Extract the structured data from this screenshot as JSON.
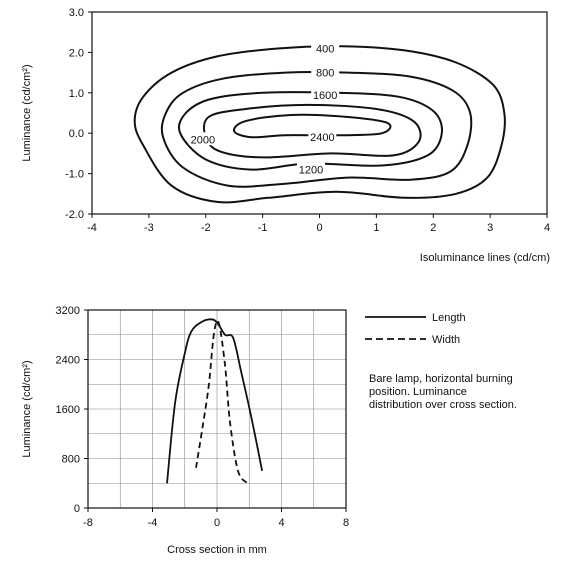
{
  "chart_data": [
    {
      "type": "contour",
      "xlabel": "Isoluminance lines (cd/cm)",
      "ylabel": "Luminance (cd/cm²)",
      "xlim": [
        -4,
        4
      ],
      "ylim": [
        -2,
        3
      ],
      "xticks": [
        "-4",
        "-3",
        "-2",
        "-1",
        "0",
        "1",
        "2",
        "3",
        "4"
      ],
      "yticks": [
        "3.0",
        "2.0",
        "1.0",
        "0.0",
        "-1.0",
        "-2.0"
      ],
      "grid": false,
      "contours": [
        {
          "label": "400",
          "points": [
            [
              -3.1,
              -0.3
            ],
            [
              -3.25,
              0.3
            ],
            [
              -3.1,
              0.9
            ],
            [
              -2.6,
              1.5
            ],
            [
              -1.8,
              1.9
            ],
            [
              -0.7,
              2.1
            ],
            [
              0.4,
              2.15
            ],
            [
              1.5,
              2.05
            ],
            [
              2.4,
              1.75
            ],
            [
              3.05,
              1.2
            ],
            [
              3.25,
              0.5
            ],
            [
              3.2,
              -0.3
            ],
            [
              2.95,
              -1.1
            ],
            [
              2.4,
              -1.5
            ],
            [
              1.5,
              -1.6
            ],
            [
              0.3,
              -1.45
            ],
            [
              -0.9,
              -1.6
            ],
            [
              -1.8,
              -1.7
            ],
            [
              -2.6,
              -1.3
            ]
          ]
        },
        {
          "label": "800",
          "points": [
            [
              -2.75,
              -0.1
            ],
            [
              -2.7,
              0.5
            ],
            [
              -2.4,
              1.0
            ],
            [
              -1.7,
              1.35
            ],
            [
              -0.6,
              1.5
            ],
            [
              0.5,
              1.5
            ],
            [
              1.6,
              1.4
            ],
            [
              2.35,
              1.05
            ],
            [
              2.65,
              0.5
            ],
            [
              2.6,
              -0.3
            ],
            [
              2.3,
              -0.95
            ],
            [
              1.6,
              -1.15
            ],
            [
              0.5,
              -1.1
            ],
            [
              -0.6,
              -1.25
            ],
            [
              -1.6,
              -1.3
            ],
            [
              -2.4,
              -0.85
            ]
          ]
        },
        {
          "label": "1600",
          "points": [
            [
              -2.45,
              0.0
            ],
            [
              -2.35,
              0.5
            ],
            [
              -1.9,
              0.85
            ],
            [
              -1.0,
              1.0
            ],
            [
              0.3,
              1.0
            ],
            [
              1.4,
              0.9
            ],
            [
              2.0,
              0.55
            ],
            [
              2.15,
              0.0
            ],
            [
              1.9,
              -0.55
            ],
            [
              1.1,
              -0.8
            ],
            [
              -0.2,
              -0.75
            ],
            [
              -1.2,
              -0.9
            ],
            [
              -2.0,
              -0.65
            ]
          ]
        },
        {
          "label": "1200",
          "points": [
            [
              -2.0,
              -0.1
            ],
            [
              -1.95,
              0.4
            ],
            [
              -1.3,
              0.6
            ],
            [
              -0.2,
              0.7
            ],
            [
              1.0,
              0.6
            ],
            [
              1.65,
              0.3
            ],
            [
              1.75,
              -0.2
            ],
            [
              1.3,
              -0.55
            ],
            [
              0.2,
              -0.5
            ],
            [
              -1.0,
              -0.6
            ],
            [
              -1.75,
              -0.45
            ]
          ]
        },
        {
          "label": "2000",
          "points": [
            [
              -1.5,
              0.05
            ],
            [
              -1.3,
              0.3
            ],
            [
              -0.5,
              0.45
            ],
            [
              0.5,
              0.4
            ],
            [
              1.2,
              0.25
            ],
            [
              1.1,
              0.0
            ],
            [
              0.4,
              -0.05
            ],
            [
              -0.6,
              -0.05
            ],
            [
              -1.2,
              -0.1
            ]
          ]
        }
      ],
      "peak_label": "2400"
    },
    {
      "type": "line",
      "xlabel": "Cross section in mm",
      "ylabel": "Luminance (cd/cm²)",
      "xlim": [
        -8,
        8
      ],
      "ylim": [
        0,
        3200
      ],
      "xticks": [
        "-8",
        "-4",
        "0",
        "4",
        "8"
      ],
      "yticks": [
        "3200",
        "2400",
        "1600",
        "800",
        "0"
      ],
      "grid": true,
      "legend_position": "right",
      "series": [
        {
          "name": "Length",
          "style": "solid",
          "x": [
            -3.1,
            -2.6,
            -2.0,
            -1.6,
            -1.0,
            -0.4,
            0.0,
            0.5,
            1.0,
            1.5,
            2.1,
            2.8
          ],
          "y": [
            400,
            1700,
            2500,
            2850,
            3000,
            3050,
            3000,
            2800,
            2750,
            2200,
            1500,
            600
          ]
        },
        {
          "name": "Width",
          "style": "dashed",
          "x": [
            -1.3,
            -0.9,
            -0.5,
            -0.2,
            0.1,
            0.5,
            0.8,
            1.3,
            1.9
          ],
          "y": [
            650,
            1300,
            2000,
            2800,
            3000,
            2300,
            1400,
            600,
            400
          ]
        }
      ],
      "annotation": "Bare lamp, horizontal burning position. Luminance distribution over cross section."
    }
  ]
}
